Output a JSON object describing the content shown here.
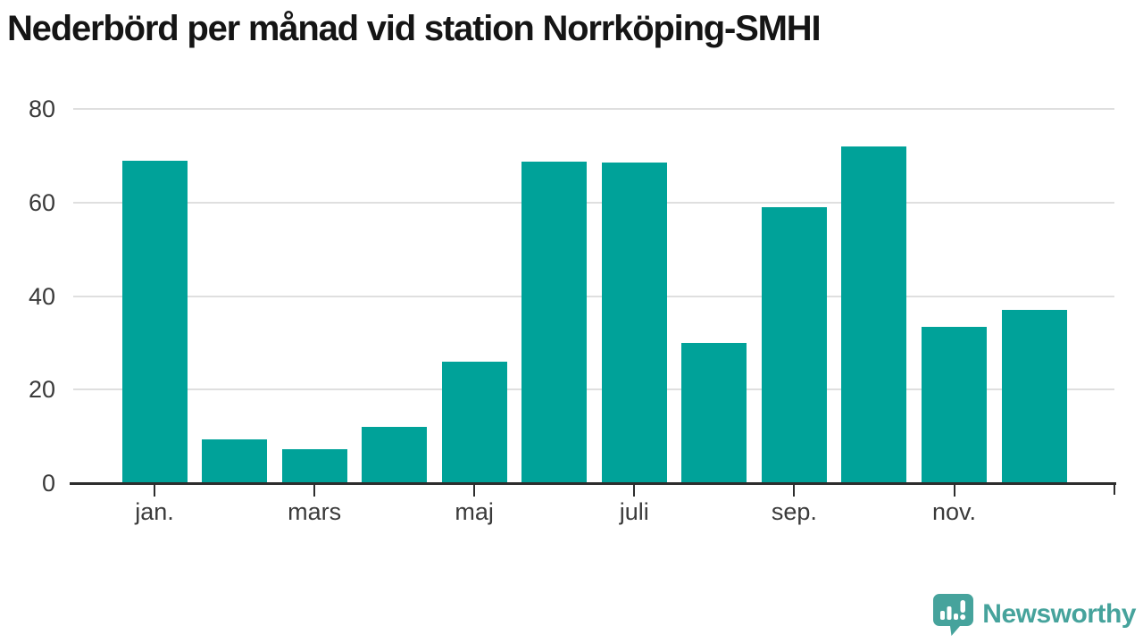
{
  "chart_data": {
    "type": "bar",
    "title": "Nederbörd per månad vid station Norrköping-SMHI",
    "values": [
      69,
      9.3,
      7.3,
      12,
      26,
      68.8,
      68.5,
      30,
      59,
      72,
      33.5,
      37
    ],
    "x_tick_labels": [
      "jan.",
      "mars",
      "maj",
      "juli",
      "sep.",
      "nov."
    ],
    "x_tick_bar_indices": [
      0,
      2,
      4,
      6,
      8,
      10
    ],
    "y_ticks": [
      0,
      20,
      40,
      60,
      80
    ],
    "ylim": [
      0,
      80
    ],
    "xlabel": "",
    "ylabel": "",
    "legend": "none",
    "grid": "horizontal",
    "bar_color": "#00a299"
  },
  "colors": {
    "axis": "#2d2d2d",
    "gridline": "#dfdfdf",
    "tick_label": "#3a3a3a",
    "title": "#151515",
    "brand_teal": "#46a39c"
  },
  "footer": {
    "brand": "Newsworthy"
  }
}
